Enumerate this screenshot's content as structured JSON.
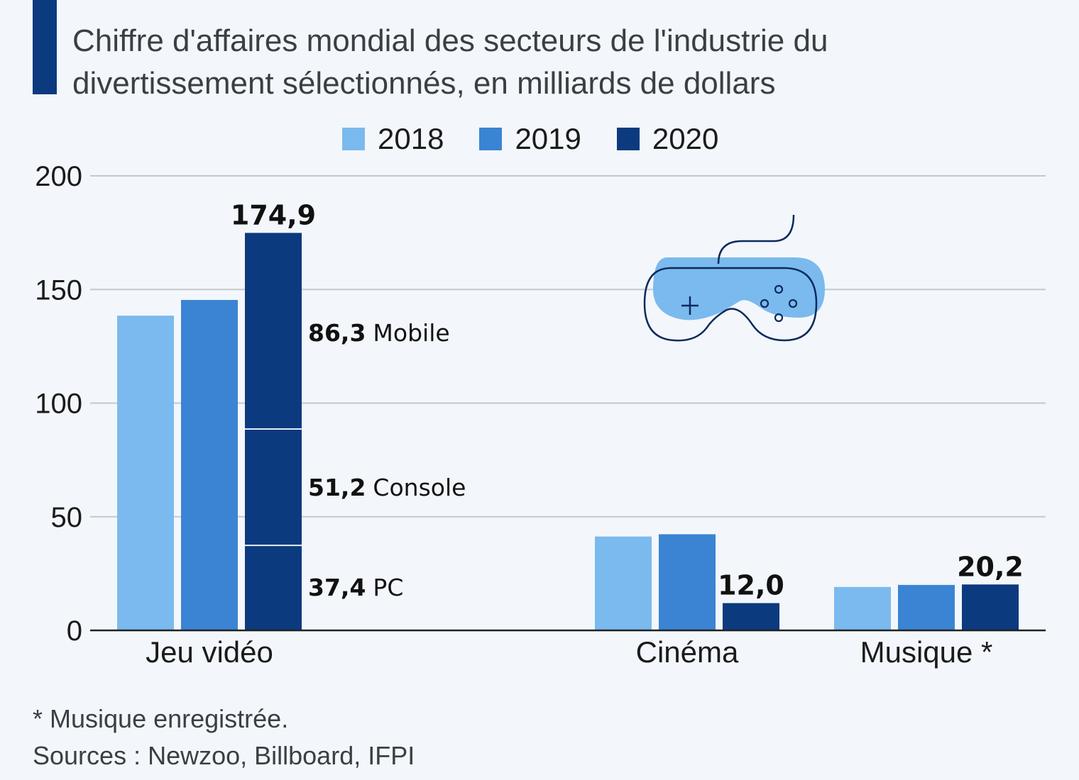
{
  "header": {
    "title_line1": "Chiffre d'affaires mondial des secteurs de l'industrie du",
    "title_line2": "divertissement sélectionnés, en milliards de dollars",
    "accent_color": "#0b3a7e"
  },
  "legend": [
    {
      "label": "2018",
      "color": "#7bbaee"
    },
    {
      "label": "2019",
      "color": "#3a84d3"
    },
    {
      "label": "2020",
      "color": "#0b3a7e"
    }
  ],
  "chart_data": {
    "type": "bar",
    "title": "Chiffre d'affaires mondial des secteurs de l'industrie du divertissement sélectionnés, en milliards de dollars",
    "xlabel": "",
    "ylabel": "",
    "ylim": [
      0,
      200
    ],
    "yticks": [
      0,
      50,
      100,
      150,
      200
    ],
    "ytick_labels": [
      "0",
      "50",
      "100",
      "150",
      "200"
    ],
    "grid": true,
    "legend_position": "top-center",
    "categories": [
      "Jeu vidéo",
      "Cinéma",
      "Musique *"
    ],
    "series": [
      {
        "name": "2018",
        "color": "#7bbaee",
        "values": [
          138.5,
          41.3,
          19.1
        ]
      },
      {
        "name": "2019",
        "color": "#3a84d3",
        "values": [
          145.4,
          42.3,
          20.0
        ]
      },
      {
        "name": "2020",
        "color": "#0b3a7e",
        "values": [
          174.9,
          12.0,
          20.2
        ]
      }
    ],
    "data_labels": [
      {
        "category": "Jeu vidéo",
        "series": "2020",
        "text": "174,9"
      },
      {
        "category": "Cinéma",
        "series": "2020",
        "text": "12,0"
      },
      {
        "category": "Musique *",
        "series": "2020",
        "text": "20,2"
      }
    ],
    "stacked_breakdown": {
      "category": "Jeu vidéo",
      "series": "2020",
      "segments": [
        {
          "name": "PC",
          "value": 37.4,
          "value_text": "37,4"
        },
        {
          "name": "Console",
          "value": 51.2,
          "value_text": "51,2"
        },
        {
          "name": "Mobile",
          "value": 86.3,
          "value_text": "86,3"
        }
      ]
    },
    "annotation_icon": "game-controller-icon"
  },
  "footer": {
    "note": "* Musique enregistrée.",
    "sources": "Sources : Newzoo, Billboard, IFPI"
  }
}
